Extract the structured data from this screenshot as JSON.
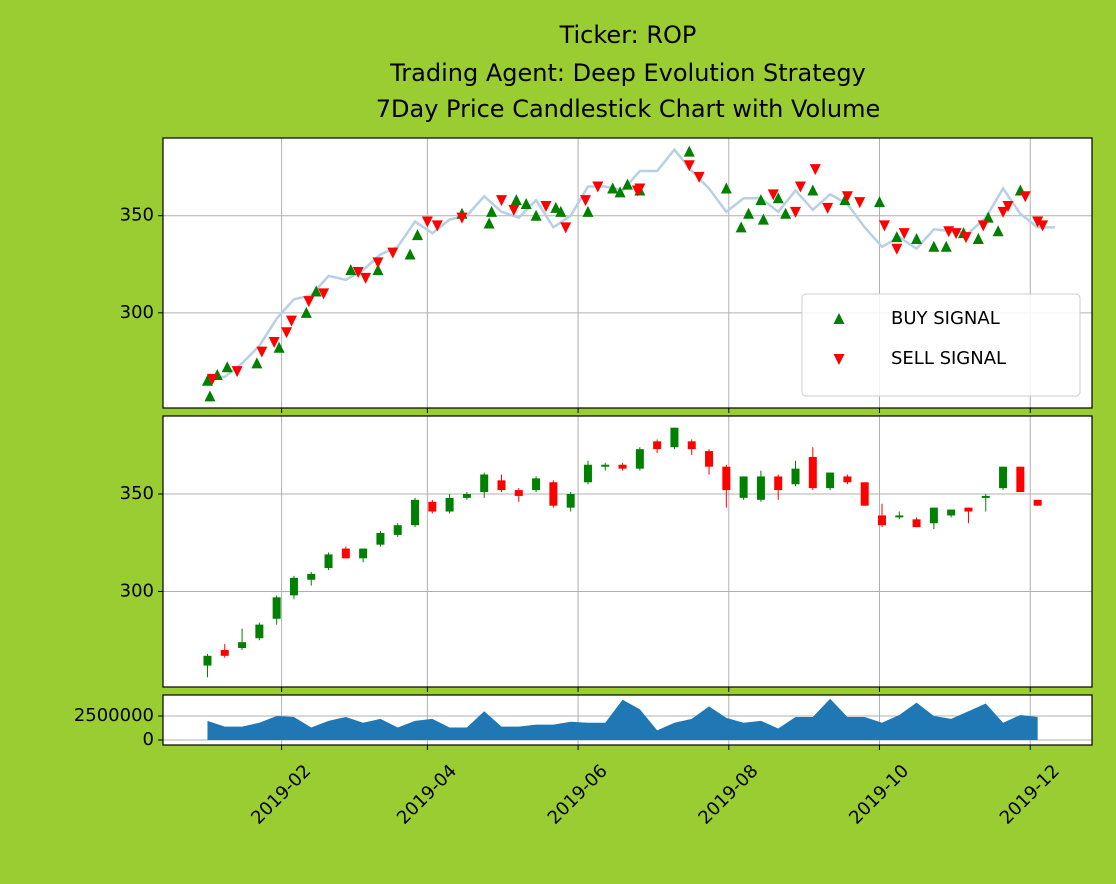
{
  "chart_data": [
    {
      "type": "signals",
      "title": [
        "Ticker: ROP",
        "Trading Agent: Deep Evolution Strategy",
        "7Day Price Candlestick Chart with Volume"
      ],
      "ylim": [
        251,
        390
      ],
      "yticks": [
        300,
        350
      ],
      "grid": true,
      "legend": "lower right",
      "series": [
        {
          "type": "line",
          "color": "#b7d0e3",
          "x": [
            "2019-01-02",
            "2019-01-09",
            "2019-01-16",
            "2019-01-23",
            "2019-01-30",
            "2019-02-06",
            "2019-02-13",
            "2019-02-20",
            "2019-02-27",
            "2019-03-06",
            "2019-03-13",
            "2019-03-20",
            "2019-03-27",
            "2019-04-03",
            "2019-04-10",
            "2019-04-17",
            "2019-04-24",
            "2019-05-01",
            "2019-05-08",
            "2019-05-15",
            "2019-05-22",
            "2019-05-29",
            "2019-06-05",
            "2019-06-12",
            "2019-06-19",
            "2019-06-26",
            "2019-07-03",
            "2019-07-10",
            "2019-07-17",
            "2019-07-24",
            "2019-07-31",
            "2019-08-07",
            "2019-08-14",
            "2019-08-21",
            "2019-08-28",
            "2019-09-04",
            "2019-09-11",
            "2019-09-18",
            "2019-09-25",
            "2019-10-02",
            "2019-10-09",
            "2019-10-16",
            "2019-10-23",
            "2019-10-30",
            "2019-11-06",
            "2019-11-13",
            "2019-11-20",
            "2019-11-27",
            "2019-12-04",
            "2019-12-11"
          ],
          "values": [
            267,
            267,
            274,
            283,
            297,
            307,
            309,
            319,
            317,
            322,
            330,
            334,
            347,
            341,
            348,
            350,
            360,
            352,
            349,
            358,
            344,
            350,
            365,
            365,
            363,
            373,
            373,
            384,
            373,
            364,
            352,
            359,
            359,
            352,
            363,
            353,
            361,
            356,
            344,
            334,
            339,
            333,
            343,
            342,
            341,
            349,
            364,
            351,
            344,
            344
          ]
        },
        {
          "type": "scatter",
          "name": "BUY SIGNAL",
          "marker": "triangle-up",
          "color": "#008000",
          "x": [
            "2019-01-02",
            "2019-01-03",
            "2019-01-06",
            "2019-01-10",
            "2019-01-22",
            "2019-01-31",
            "2019-02-11",
            "2019-02-15",
            "2019-03-01",
            "2019-03-12",
            "2019-03-25",
            "2019-03-28",
            "2019-04-15",
            "2019-04-26",
            "2019-04-27",
            "2019-05-07",
            "2019-05-11",
            "2019-05-15",
            "2019-05-23",
            "2019-05-25",
            "2019-06-05",
            "2019-06-15",
            "2019-06-18",
            "2019-06-21",
            "2019-06-26",
            "2019-07-16",
            "2019-07-31",
            "2019-08-06",
            "2019-08-09",
            "2019-08-14",
            "2019-08-15",
            "2019-08-21",
            "2019-08-24",
            "2019-09-04",
            "2019-09-17",
            "2019-10-01",
            "2019-10-08",
            "2019-10-16",
            "2019-10-23",
            "2019-10-28",
            "2019-11-04",
            "2019-11-10",
            "2019-11-14",
            "2019-11-18",
            "2019-11-27"
          ],
          "values": [
            265,
            257,
            268,
            272,
            274,
            282,
            300,
            311,
            322,
            322,
            330,
            340,
            351,
            346,
            352,
            358,
            356,
            350,
            354,
            352,
            352,
            364,
            362,
            366,
            363,
            383,
            364,
            344,
            351,
            358,
            348,
            359,
            351,
            363,
            358,
            357,
            339,
            338,
            334,
            334,
            341,
            338,
            349,
            342,
            363
          ]
        },
        {
          "type": "scatter",
          "name": "SELL SIGNAL",
          "marker": "triangle-down",
          "color": "#ff0000",
          "x": [
            "2019-01-04",
            "2019-01-14",
            "2019-01-24",
            "2019-01-29",
            "2019-02-03",
            "2019-02-05",
            "2019-02-12",
            "2019-02-18",
            "2019-03-04",
            "2019-03-07",
            "2019-03-12",
            "2019-03-18",
            "2019-04-01",
            "2019-04-05",
            "2019-04-15",
            "2019-05-01",
            "2019-05-06",
            "2019-05-19",
            "2019-05-27",
            "2019-06-04",
            "2019-06-09",
            "2019-06-25",
            "2019-06-26",
            "2019-07-16",
            "2019-07-20",
            "2019-08-19",
            "2019-08-28",
            "2019-08-30",
            "2019-09-05",
            "2019-09-10",
            "2019-09-18",
            "2019-09-23",
            "2019-10-03",
            "2019-10-08",
            "2019-10-11",
            "2019-10-29",
            "2019-11-01",
            "2019-11-05",
            "2019-11-12",
            "2019-11-20",
            "2019-11-22",
            "2019-11-29",
            "2019-12-04",
            "2019-12-06"
          ],
          "values": [
            266,
            270,
            280,
            285,
            290,
            296,
            306,
            310,
            321,
            318,
            326,
            331,
            347,
            345,
            349,
            358,
            353,
            355,
            344,
            358,
            365,
            363,
            364,
            376,
            370,
            361,
            352,
            365,
            374,
            354,
            360,
            357,
            345,
            333,
            341,
            342,
            341,
            339,
            345,
            352,
            355,
            360,
            347,
            345
          ]
        }
      ]
    },
    {
      "type": "candlestick",
      "ylim": [
        251,
        390
      ],
      "yticks": [
        300,
        350
      ],
      "grid": true,
      "up_color": "#008000",
      "down_color": "#ff0000",
      "x": [
        "2019-01-02",
        "2019-01-09",
        "2019-01-16",
        "2019-01-23",
        "2019-01-30",
        "2019-02-06",
        "2019-02-13",
        "2019-02-20",
        "2019-02-27",
        "2019-03-06",
        "2019-03-13",
        "2019-03-20",
        "2019-03-27",
        "2019-04-03",
        "2019-04-10",
        "2019-04-17",
        "2019-04-24",
        "2019-05-01",
        "2019-05-08",
        "2019-05-15",
        "2019-05-22",
        "2019-05-29",
        "2019-06-05",
        "2019-06-12",
        "2019-06-19",
        "2019-06-26",
        "2019-07-03",
        "2019-07-10",
        "2019-07-17",
        "2019-07-24",
        "2019-07-31",
        "2019-08-07",
        "2019-08-14",
        "2019-08-21",
        "2019-08-28",
        "2019-09-04",
        "2019-09-11",
        "2019-09-18",
        "2019-09-25",
        "2019-10-02",
        "2019-10-09",
        "2019-10-16",
        "2019-10-23",
        "2019-10-30",
        "2019-11-06",
        "2019-11-13",
        "2019-11-20",
        "2019-11-27",
        "2019-12-04"
      ],
      "open": [
        262,
        270,
        271,
        276,
        286,
        298,
        306,
        312,
        322,
        317,
        324,
        329,
        334,
        346,
        341,
        348,
        351,
        357,
        352,
        352,
        356,
        343,
        356,
        364,
        365,
        363,
        377,
        374,
        377,
        372,
        364,
        348,
        347,
        359,
        355,
        369,
        353,
        359,
        356,
        339,
        338,
        337,
        335,
        339,
        343,
        348,
        353,
        364,
        347
      ],
      "high": [
        268,
        273,
        281,
        284,
        298,
        308,
        310,
        320,
        323,
        322,
        331,
        335,
        348,
        347,
        350,
        351,
        361,
        360,
        353,
        359,
        357,
        351,
        367,
        366,
        366,
        374,
        378,
        384,
        378,
        373,
        365,
        359,
        362,
        360,
        367,
        374,
        361,
        360,
        356,
        345,
        341,
        338,
        343,
        342,
        343,
        350,
        364,
        364,
        347
      ],
      "low": [
        256,
        266,
        270,
        275,
        283,
        296,
        303,
        311,
        317,
        315,
        323,
        328,
        333,
        340,
        340,
        347,
        348,
        351,
        346,
        351,
        343,
        341,
        355,
        362,
        362,
        362,
        371,
        373,
        370,
        360,
        343,
        347,
        346,
        347,
        354,
        352,
        352,
        355,
        344,
        333,
        337,
        333,
        332,
        338,
        335,
        341,
        352,
        351,
        344
      ],
      "close": [
        267,
        267,
        274,
        283,
        297,
        307,
        309,
        319,
        317,
        322,
        330,
        334,
        347,
        341,
        348,
        350,
        360,
        352,
        349,
        358,
        344,
        350,
        365,
        365,
        363,
        373,
        373,
        384,
        373,
        364,
        352,
        359,
        359,
        352,
        363,
        353,
        361,
        356,
        344,
        334,
        339,
        333,
        343,
        342,
        341,
        349,
        364,
        351,
        344
      ]
    },
    {
      "type": "area",
      "color": "#1f77b4",
      "ylim": [
        -520000,
        4690000
      ],
      "yticks": [
        0,
        2500000
      ],
      "xlim": [
        "2018-12-15",
        "2019-12-26"
      ],
      "xticks": [
        {
          "value": "2019-02-01",
          "label": "2019-02"
        },
        {
          "value": "2019-04-01",
          "label": "2019-04"
        },
        {
          "value": "2019-06-01",
          "label": "2019-06"
        },
        {
          "value": "2019-08-01",
          "label": "2019-08"
        },
        {
          "value": "2019-10-01",
          "label": "2019-10"
        },
        {
          "value": "2019-12-01",
          "label": "2019-12"
        }
      ],
      "x": [
        "2019-01-02",
        "2019-01-09",
        "2019-01-16",
        "2019-01-23",
        "2019-01-30",
        "2019-02-06",
        "2019-02-13",
        "2019-02-20",
        "2019-02-27",
        "2019-03-06",
        "2019-03-13",
        "2019-03-20",
        "2019-03-27",
        "2019-04-03",
        "2019-04-10",
        "2019-04-17",
        "2019-04-24",
        "2019-05-01",
        "2019-05-08",
        "2019-05-15",
        "2019-05-22",
        "2019-05-29",
        "2019-06-05",
        "2019-06-12",
        "2019-06-19",
        "2019-06-26",
        "2019-07-03",
        "2019-07-10",
        "2019-07-17",
        "2019-07-24",
        "2019-07-31",
        "2019-08-07",
        "2019-08-14",
        "2019-08-21",
        "2019-08-28",
        "2019-09-04",
        "2019-09-11",
        "2019-09-18",
        "2019-09-25",
        "2019-10-02",
        "2019-10-09",
        "2019-10-16",
        "2019-10-23",
        "2019-10-30",
        "2019-11-06",
        "2019-11-13",
        "2019-11-20",
        "2019-11-27",
        "2019-12-04"
      ],
      "values": [
        2000000,
        1400000,
        1400000,
        1800000,
        2500000,
        2400000,
        1300000,
        2000000,
        2400000,
        1800000,
        2200000,
        1300000,
        2000000,
        2200000,
        1300000,
        1300000,
        3000000,
        1400000,
        1400000,
        1600000,
        1600000,
        1900000,
        1800000,
        1800000,
        4200000,
        3200000,
        1000000,
        1800000,
        2200000,
        3500000,
        2300000,
        1800000,
        2000000,
        1200000,
        2400000,
        2400000,
        4300000,
        2400000,
        2400000,
        1800000,
        2600000,
        3900000,
        2500000,
        2200000,
        3000000,
        3800000,
        1800000,
        2600000,
        2400000
      ]
    }
  ]
}
